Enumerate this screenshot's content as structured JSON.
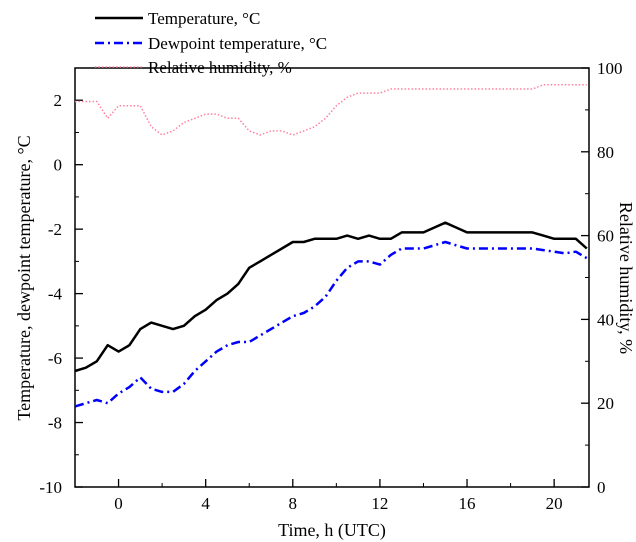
{
  "chart_data": {
    "type": "line",
    "xlabel": "Time, h (UTC)",
    "ylabel_left": "Temperature, dewpoint temperature, °C",
    "ylabel_right": "Relative humidity, %",
    "xlim": [
      -2,
      21.6
    ],
    "ylim_left": [
      -10,
      3
    ],
    "ylim_right": [
      0,
      100
    ],
    "x_ticks": [
      0,
      4,
      8,
      12,
      16,
      20
    ],
    "y_left_ticks": [
      -10,
      -8,
      -6,
      -4,
      -2,
      0,
      2
    ],
    "y_right_ticks": [
      0,
      20,
      40,
      60,
      80,
      100
    ],
    "grid": false,
    "legend_position": "top-left",
    "series": [
      {
        "name": "Temperature, °C",
        "axis": "left",
        "color": "#000000",
        "style": "solid",
        "x": [
          -2,
          -1.5,
          -1,
          -0.5,
          0,
          0.5,
          1,
          1.5,
          2,
          2.5,
          3,
          3.5,
          4,
          4.5,
          5,
          5.5,
          6,
          6.5,
          7,
          7.5,
          8,
          8.5,
          9,
          9.5,
          10,
          10.5,
          11,
          11.5,
          12,
          12.5,
          13,
          13.5,
          14,
          14.5,
          15,
          15.5,
          16,
          16.5,
          17,
          17.5,
          18,
          18.5,
          19,
          19.5,
          20,
          20.5,
          21,
          21.5
        ],
        "values": [
          -6.4,
          -6.3,
          -6.1,
          -5.6,
          -5.8,
          -5.6,
          -5.1,
          -4.9,
          -5.0,
          -5.1,
          -5.0,
          -4.7,
          -4.5,
          -4.2,
          -4.0,
          -3.7,
          -3.2,
          -3.0,
          -2.8,
          -2.6,
          -2.4,
          -2.4,
          -2.3,
          -2.3,
          -2.3,
          -2.2,
          -2.3,
          -2.2,
          -2.3,
          -2.3,
          -2.1,
          -2.1,
          -2.1,
          -1.95,
          -1.8,
          -1.95,
          -2.1,
          -2.1,
          -2.1,
          -2.1,
          -2.1,
          -2.1,
          -2.1,
          -2.2,
          -2.3,
          -2.3,
          -2.3,
          -2.6
        ]
      },
      {
        "name": "Dewpoint temperature, °C",
        "axis": "left",
        "color": "#0000ff",
        "style": "dash-dot",
        "x": [
          -2,
          -1.5,
          -1,
          -0.5,
          0,
          0.5,
          1,
          1.5,
          2,
          2.5,
          3,
          3.5,
          4,
          4.5,
          5,
          5.5,
          6,
          6.5,
          7,
          7.5,
          8,
          8.5,
          9,
          9.5,
          10,
          10.5,
          11,
          11.5,
          12,
          12.5,
          13,
          13.5,
          14,
          14.5,
          15,
          15.5,
          16,
          16.5,
          17,
          17.5,
          18,
          18.5,
          19,
          19.5,
          20,
          20.5,
          21,
          21.5
        ],
        "values": [
          -7.5,
          -7.4,
          -7.3,
          -7.4,
          -7.1,
          -6.9,
          -6.6,
          -6.95,
          -7.05,
          -7.05,
          -6.8,
          -6.4,
          -6.1,
          -5.8,
          -5.6,
          -5.5,
          -5.5,
          -5.3,
          -5.1,
          -4.9,
          -4.7,
          -4.6,
          -4.4,
          -4.1,
          -3.6,
          -3.2,
          -3.0,
          -3.0,
          -3.1,
          -2.8,
          -2.6,
          -2.6,
          -2.6,
          -2.5,
          -2.4,
          -2.5,
          -2.6,
          -2.6,
          -2.6,
          -2.6,
          -2.6,
          -2.6,
          -2.6,
          -2.65,
          -2.7,
          -2.75,
          -2.7,
          -2.9
        ]
      },
      {
        "name": "Relative humidity, %",
        "axis": "right",
        "color": "#ff80a0",
        "style": "dotted",
        "x": [
          -2,
          -1.5,
          -1,
          -0.5,
          0,
          0.5,
          1,
          1.5,
          2,
          2.5,
          3,
          3.5,
          4,
          4.5,
          5,
          5.5,
          6,
          6.5,
          7,
          7.5,
          8,
          8.5,
          9,
          9.5,
          10,
          10.5,
          11,
          11.5,
          12,
          12.5,
          13,
          13.5,
          14,
          14.5,
          15,
          15.5,
          16,
          16.5,
          17,
          17.5,
          18,
          18.5,
          19,
          19.5,
          20,
          20.5,
          21,
          21.5
        ],
        "values": [
          92,
          92,
          92,
          88,
          91,
          91,
          91,
          86,
          84,
          85,
          87,
          88,
          89,
          89,
          88,
          88,
          85,
          84,
          85,
          85,
          84,
          85,
          86,
          88,
          91,
          93,
          94,
          94,
          94,
          95,
          95,
          95,
          95,
          95,
          95,
          95,
          95,
          95,
          95,
          95,
          95,
          95,
          95,
          96,
          96,
          96,
          96,
          96
        ]
      }
    ]
  }
}
